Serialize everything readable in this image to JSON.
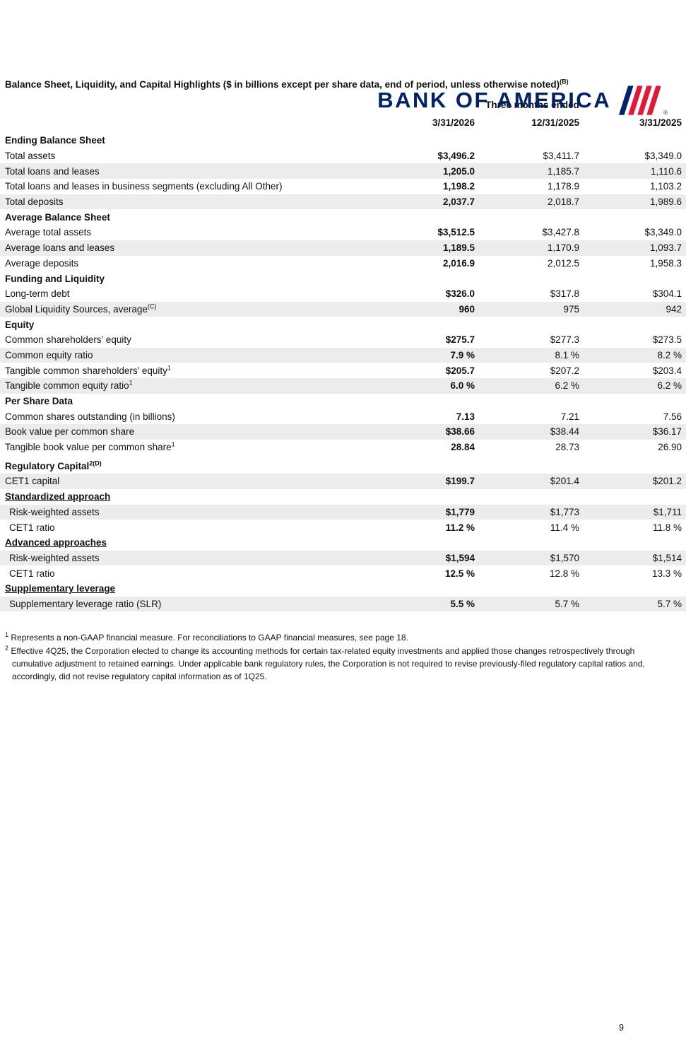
{
  "logo": {
    "text": "BANK OF AMERICA",
    "registered": "®",
    "navy": "#012169",
    "red": "#E31837"
  },
  "title": {
    "text": "Balance Sheet, Liquidity, and Capital Highlights ($ in billions except per share data, end of period, unless otherwise noted)",
    "sup": "(B)"
  },
  "table": {
    "period_header": "Three months ended",
    "columns": [
      "3/31/2026",
      "12/31/2025",
      "3/31/2025"
    ],
    "rows": [
      {
        "type": "section",
        "label": "Ending Balance Sheet"
      },
      {
        "type": "data",
        "label": "Total assets",
        "values": [
          "$3,496.2",
          "$3,411.7",
          "$3,349.0"
        ],
        "shaded": false
      },
      {
        "type": "data",
        "label": "Total loans and leases",
        "values": [
          "1,205.0",
          "1,185.7",
          "1,110.6"
        ],
        "shaded": true
      },
      {
        "type": "data",
        "label": "Total loans and leases in business segments (excluding All Other)",
        "values": [
          "1,198.2",
          "1,178.9",
          "1,103.2"
        ],
        "shaded": false
      },
      {
        "type": "data",
        "label": "Total deposits",
        "values": [
          "2,037.7",
          "2,018.7",
          "1,989.6"
        ],
        "shaded": true
      },
      {
        "type": "section",
        "label": "Average Balance Sheet"
      },
      {
        "type": "data",
        "label": "Average total assets",
        "values": [
          "$3,512.5",
          "$3,427.8",
          "$3,349.0"
        ],
        "shaded": false
      },
      {
        "type": "data",
        "label": "Average loans and leases",
        "values": [
          "1,189.5",
          "1,170.9",
          "1,093.7"
        ],
        "shaded": true
      },
      {
        "type": "data",
        "label": "Average deposits",
        "values": [
          "2,016.9",
          "2,012.5",
          "1,958.3"
        ],
        "shaded": false
      },
      {
        "type": "section",
        "label": "Funding and Liquidity"
      },
      {
        "type": "data",
        "label": "Long-term debt",
        "values": [
          "$326.0",
          "$317.8",
          "$304.1"
        ],
        "shaded": false
      },
      {
        "type": "data",
        "label": "Global Liquidity Sources, average",
        "sup": "(C)",
        "values": [
          "960",
          "975",
          "942"
        ],
        "shaded": true
      },
      {
        "type": "section",
        "label": "Equity"
      },
      {
        "type": "data",
        "label": "Common shareholders’ equity",
        "values": [
          "$275.7",
          "$277.3",
          "$273.5"
        ],
        "shaded": false
      },
      {
        "type": "data",
        "label": "Common equity ratio",
        "values": [
          "7.9 %",
          "8.1 %",
          "8.2 %"
        ],
        "shaded": true
      },
      {
        "type": "data",
        "label": "Tangible common shareholders’ equity",
        "sup": "1",
        "values": [
          "$205.7",
          "$207.2",
          "$203.4"
        ],
        "shaded": false
      },
      {
        "type": "data",
        "label": "Tangible common equity ratio",
        "sup": "1",
        "values": [
          "6.0 %",
          "6.2 %",
          "6.2 %"
        ],
        "shaded": true
      },
      {
        "type": "section",
        "label": "Per Share Data"
      },
      {
        "type": "data",
        "label": "Common shares outstanding (in billions)",
        "values": [
          "7.13",
          "7.21",
          "7.56"
        ],
        "shaded": false
      },
      {
        "type": "data",
        "label": "Book value per common share",
        "values": [
          "$38.66",
          "$38.44",
          "$36.17"
        ],
        "shaded": true
      },
      {
        "type": "data",
        "label": "Tangible book value per common share",
        "sup": "1",
        "values": [
          "28.84",
          "28.73",
          "26.90"
        ],
        "shaded": false
      },
      {
        "type": "section",
        "label": "Regulatory Capital",
        "sup": "2(D)",
        "space_before": true
      },
      {
        "type": "data",
        "label": "CET1 capital",
        "values": [
          "$199.7",
          "$201.4",
          "$201.2"
        ],
        "shaded": true
      },
      {
        "type": "section-underline",
        "label": "Standardized approach"
      },
      {
        "type": "data",
        "label": "Risk-weighted assets",
        "values": [
          "$1,779",
          "$1,773",
          "$1,711"
        ],
        "shaded": true,
        "indent": true
      },
      {
        "type": "data",
        "label": "CET1 ratio",
        "values": [
          "11.2 %",
          "11.4 %",
          "11.8 %"
        ],
        "shaded": false,
        "indent": true
      },
      {
        "type": "section-underline",
        "label": "Advanced approaches"
      },
      {
        "type": "data",
        "label": "Risk-weighted assets",
        "values": [
          "$1,594",
          "$1,570",
          "$1,514"
        ],
        "shaded": true,
        "indent": true
      },
      {
        "type": "data",
        "label": "CET1 ratio",
        "values": [
          "12.5 %",
          "12.8 %",
          "13.3 %"
        ],
        "shaded": false,
        "indent": true
      },
      {
        "type": "section-underline",
        "label": "Supplementary leverage"
      },
      {
        "type": "data",
        "label": "Supplementary leverage ratio (SLR)",
        "values": [
          "5.5 %",
          "5.7 %",
          "5.7 %"
        ],
        "shaded": true,
        "indent": true
      }
    ]
  },
  "footnotes": [
    {
      "sup": "1",
      "text": "Represents a non-GAAP financial measure. For reconciliations to GAAP financial measures, see page 18."
    },
    {
      "sup": "2",
      "text": "Effective 4Q25, the Corporation elected to change its accounting methods for certain tax-related equity investments and applied those changes retrospectively through cumulative adjustment to retained earnings. Under applicable bank regulatory rules, the Corporation is not required to revise previously-filed regulatory capital ratios and, accordingly, did not revise regulatory capital information as of 1Q25."
    }
  ],
  "page": {
    "number": "9"
  }
}
